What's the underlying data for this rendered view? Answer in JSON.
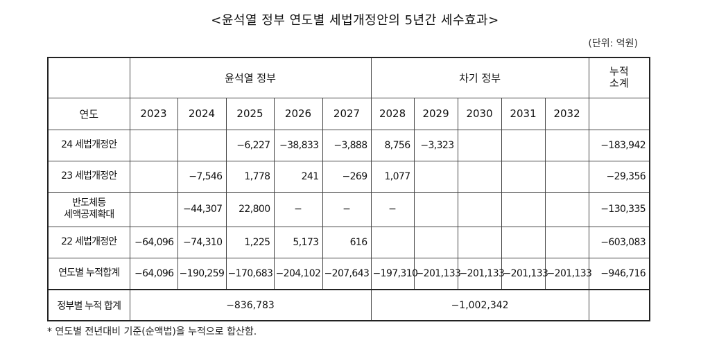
{
  "title": "<윤석열 정부 연도별 세법개정안의 5년간 세수효과>",
  "unit": "(단위: 억원)",
  "header": {
    "gov_yoon": "윤석열 정부",
    "gov_next": "차기 정부",
    "cumulative": "누적\n소계",
    "year_label": "연도",
    "years": [
      "2023",
      "2024",
      "2025",
      "2026",
      "2027",
      "2028",
      "2029",
      "2030",
      "2031",
      "2032"
    ]
  },
  "rows": [
    {
      "label": "24 세법개정안",
      "cells": [
        "",
        "",
        "−6,227",
        "−38,833",
        "−3,888",
        "8,756",
        "−3,323",
        "",
        "",
        ""
      ],
      "total": "−183,942"
    },
    {
      "label": "23 세법개정안",
      "cells": [
        "",
        "−7,546",
        "1,778",
        "241",
        "−269",
        "1,077",
        "",
        "",
        "",
        ""
      ],
      "total": "−29,356"
    },
    {
      "label": "반도체등\n세액공제확대",
      "cells": [
        "",
        "−44,307",
        "22,800",
        "−",
        "−",
        "−",
        "",
        "",
        "",
        ""
      ],
      "total": "−130,335"
    },
    {
      "label": "22 세법개정안",
      "cells": [
        "−64,096",
        "−74,310",
        "1,225",
        "5,173",
        "616",
        "",
        "",
        "",
        "",
        ""
      ],
      "total": "−603,083"
    },
    {
      "label": "연도별 누적합계",
      "cells": [
        "−64,096",
        "−190,259",
        "−170,683",
        "−204,102",
        "−207,643",
        "−197,310",
        "−201,133",
        "−201,133",
        "−201,133",
        "−201,133"
      ],
      "total": "−946,716"
    }
  ],
  "gov_total": {
    "label": "정부별 누적 합계",
    "yoon": "−836,783",
    "next": "−1,002,342",
    "cumulative": ""
  },
  "note": "* 연도별 전년대비 기준(순액법)을 누적으로 합산함."
}
